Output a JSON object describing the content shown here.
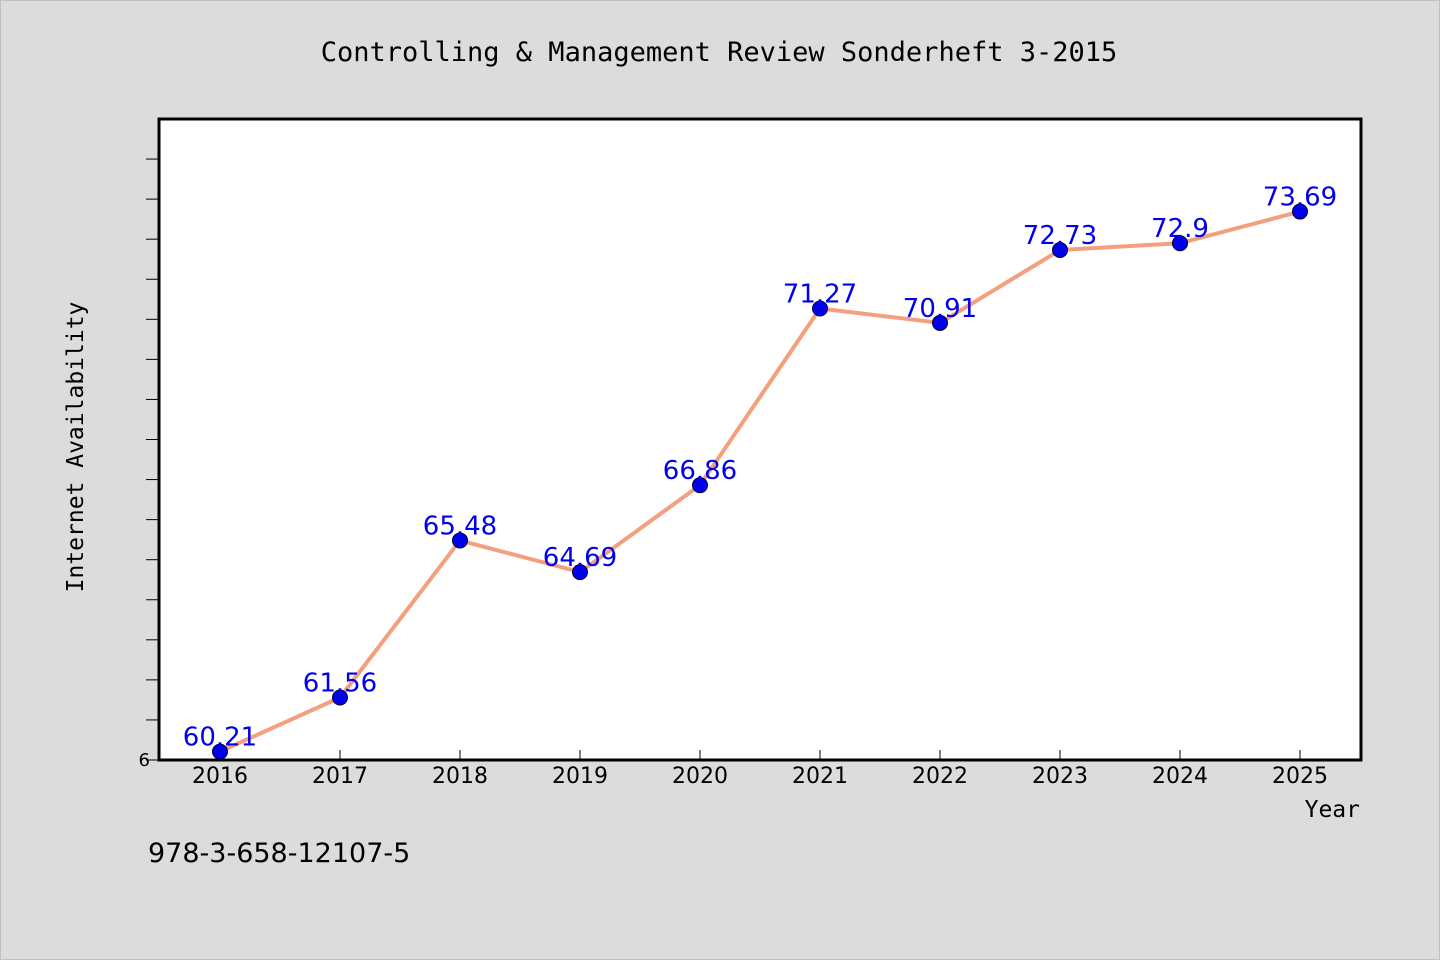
{
  "chart_data": {
    "type": "line",
    "title": "Controlling & Management Review Sonderheft 3-2015",
    "xlabel": "Year",
    "ylabel": "Internet Availability",
    "x": [
      "2016",
      "2017",
      "2018",
      "2019",
      "2020",
      "2021",
      "2022",
      "2023",
      "2024",
      "2025"
    ],
    "series": [
      {
        "values": [
          60.21,
          61.56,
          65.48,
          64.69,
          66.86,
          71.27,
          70.91,
          72.73,
          72.9,
          73.69
        ],
        "data_labels": [
          "60.21",
          "61.56",
          "65.48",
          "64.69",
          "66.86",
          "71.27",
          "70.91",
          "72.73",
          "72.9",
          "73.69"
        ]
      }
    ],
    "y_tick_label": "6",
    "ylim": [
      60,
      76
    ],
    "grid": false,
    "legend": "none",
    "colors": {
      "line": "#f4a07e",
      "marker": "#0000ee",
      "label": "#0000ee",
      "background": "#dcdcdc",
      "plot_background": "#ffffff"
    }
  },
  "footer_text": "978-3-658-12107-5"
}
